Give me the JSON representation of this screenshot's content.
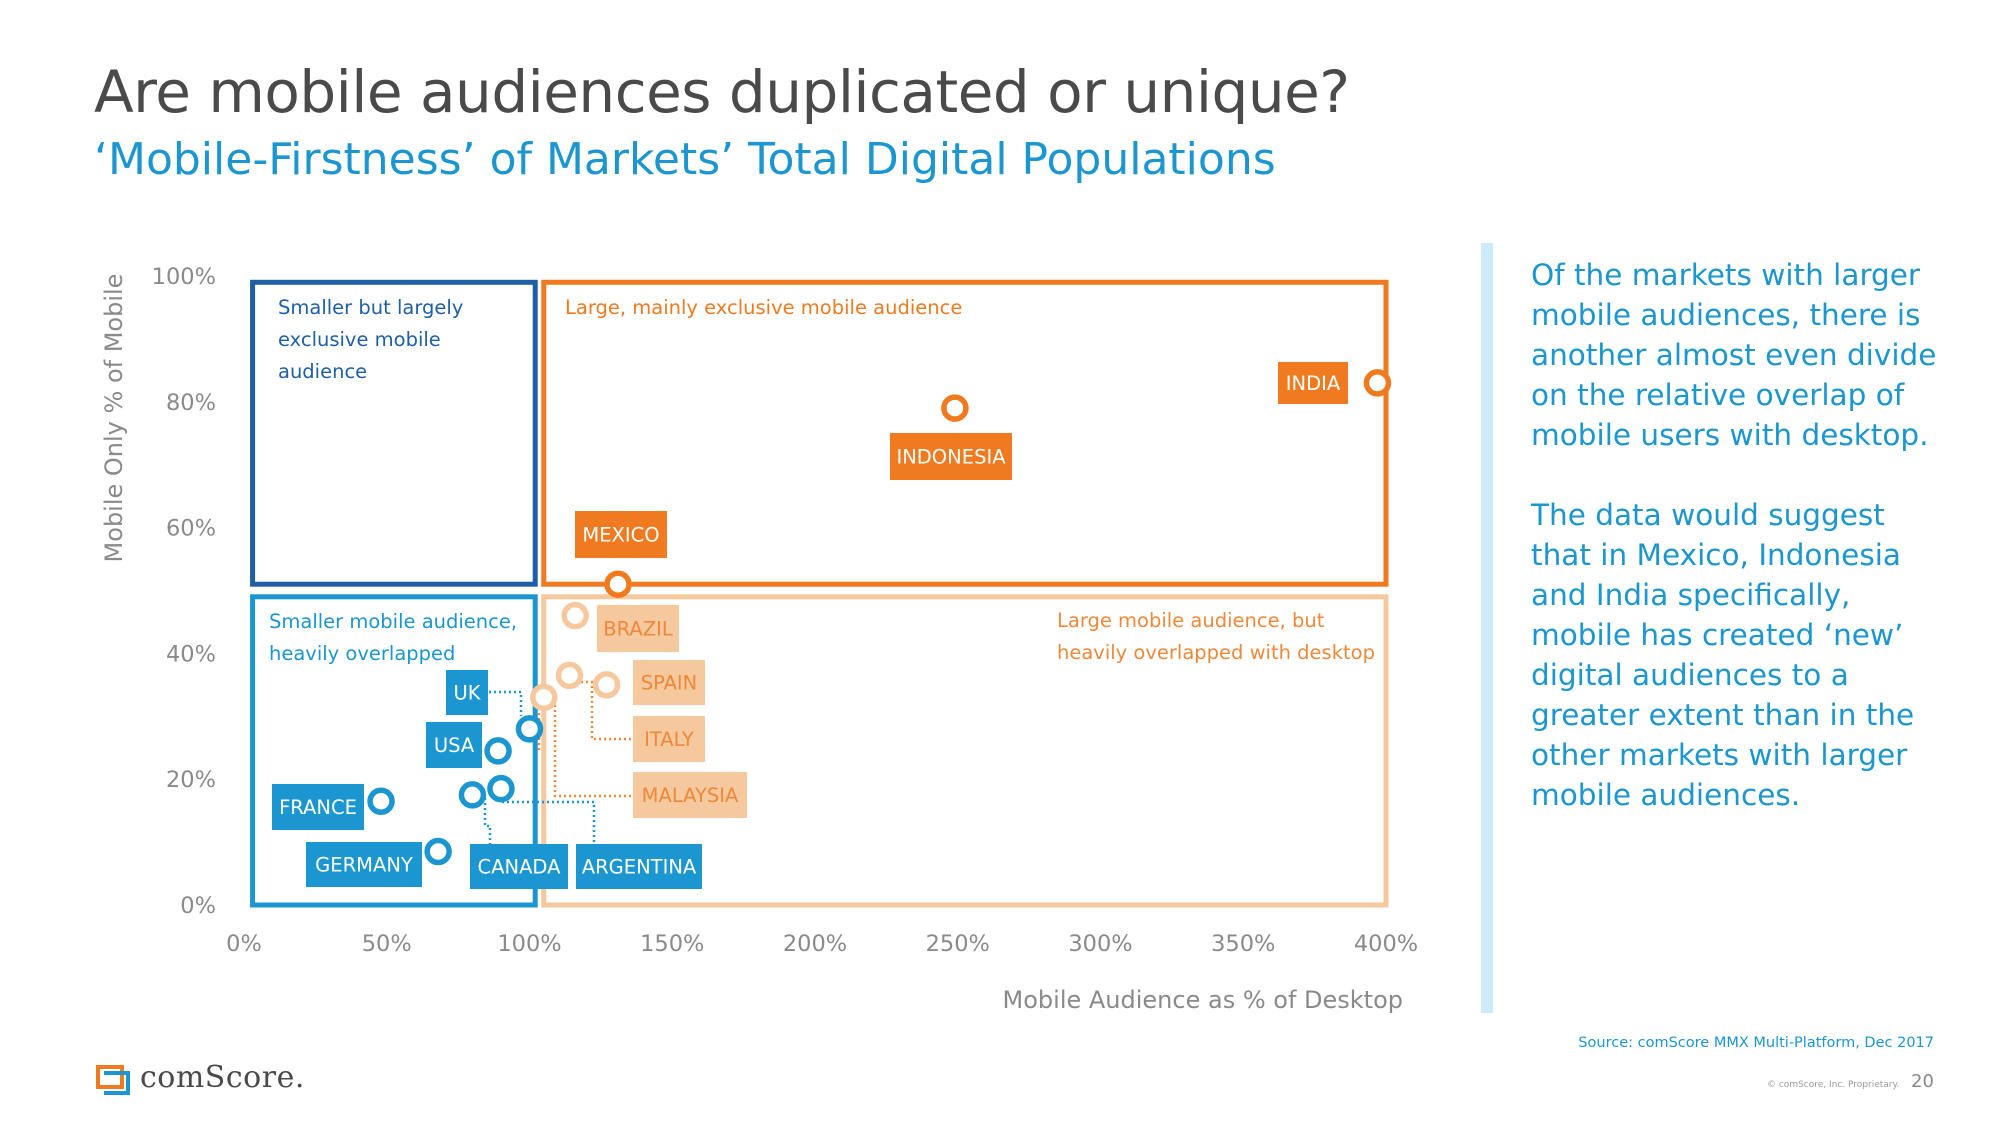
{
  "title": "Are mobile audiences duplicated or unique?",
  "subtitle": "‘Mobile-Firstness’ of Markets’ Total Digital Populations",
  "colors": {
    "dark_blue": "#1f5fa6",
    "blue": "#1b96d1",
    "orange": "#f07a1f",
    "light_orange": "#f6c89e",
    "light_orange_text": "#f0883a",
    "axis_text": "#8a8a8a",
    "divider": "#cdebf8"
  },
  "side_text": [
    "Of the markets with larger mobile audiences, there is another almost even divide on the relative overlap of mobile users with desktop.",
    "The data would suggest that in Mexico, Indonesia and India specifically, mobile has created ‘new’ digital audiences to a greater extent than in the other markets with larger mobile audiences."
  ],
  "source": "Source: comScore MMX Multi-Platform, Dec 2017",
  "copyright": "© comScore, Inc. Proprietary.",
  "page_number": "20",
  "logo_text": "comScore.",
  "chart_data": {
    "type": "scatter",
    "xlabel": "Mobile Audience as % of Desktop",
    "ylabel": "Mobile Only % of Mobile",
    "xlim": [
      0,
      400
    ],
    "ylim": [
      0,
      100
    ],
    "xticks": [
      "0%",
      "50%",
      "100%",
      "150%",
      "200%",
      "250%",
      "300%",
      "350%",
      "400%"
    ],
    "yticks": [
      "0%",
      "20%",
      "40%",
      "60%",
      "80%",
      "100%"
    ],
    "quadrants": [
      {
        "name": "q-top-left",
        "label": [
          "Smaller but largely",
          "exclusive mobile",
          "audience"
        ],
        "x0": 3,
        "x1": 102,
        "y0": 51,
        "y1": 99,
        "style": "dark_blue"
      },
      {
        "name": "q-top-right",
        "label": [
          "Large, mainly exclusive mobile audience"
        ],
        "x0": 105,
        "x1": 400,
        "y0": 51,
        "y1": 99,
        "style": "orange"
      },
      {
        "name": "q-bottom-left",
        "label": [
          "Smaller mobile audience,",
          "heavily overlapped"
        ],
        "x0": 3,
        "x1": 102,
        "y0": 0,
        "y1": 49,
        "style": "blue"
      },
      {
        "name": "q-bottom-right",
        "label": [
          "Large mobile audience, but",
          "heavily overlapped with desktop"
        ],
        "x0": 105,
        "x1": 400,
        "y0": 0,
        "y1": 49,
        "style": "light_orange"
      }
    ],
    "points": [
      {
        "label": "INDIA",
        "x": 397,
        "y": 83,
        "group": "orange"
      },
      {
        "label": "INDONESIA",
        "x": 249,
        "y": 79,
        "group": "orange"
      },
      {
        "label": "MEXICO",
        "x": 131,
        "y": 51,
        "group": "orange"
      },
      {
        "label": "BRAZIL",
        "x": 116,
        "y": 46,
        "group": "light_orange"
      },
      {
        "label": "SPAIN",
        "x": 127,
        "y": 35,
        "group": "light_orange"
      },
      {
        "label": "ITALY",
        "x": 114,
        "y": 36.5,
        "group": "light_orange"
      },
      {
        "label": "MALAYSIA",
        "x": 105,
        "y": 33,
        "group": "light_orange"
      },
      {
        "label": "UK",
        "x": 100,
        "y": 28,
        "group": "blue"
      },
      {
        "label": "USA",
        "x": 89,
        "y": 24.5,
        "group": "blue"
      },
      {
        "label": "FRANCE",
        "x": 48,
        "y": 16.5,
        "group": "blue"
      },
      {
        "label": "GERMANY",
        "x": 68,
        "y": 8.5,
        "group": "blue"
      },
      {
        "label": "CANADA",
        "x": 80,
        "y": 17.5,
        "group": "blue"
      },
      {
        "label": "ARGENTINA",
        "x": 90,
        "y": 18.5,
        "group": "blue"
      }
    ]
  }
}
